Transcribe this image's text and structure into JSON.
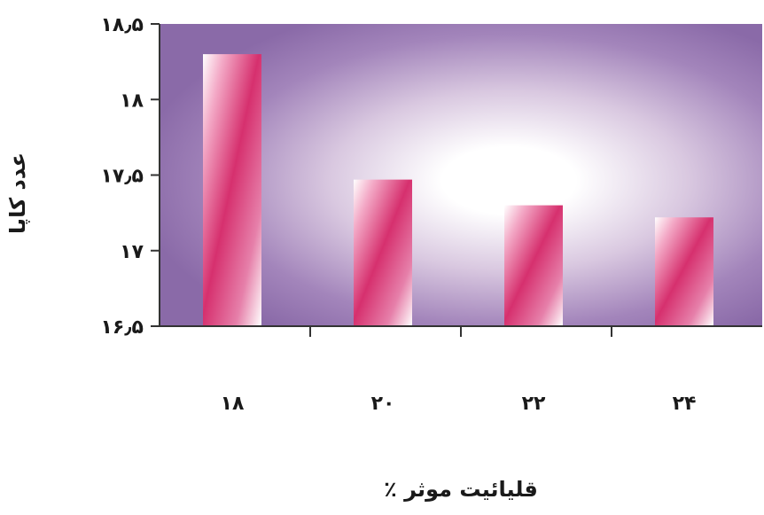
{
  "chart_data": {
    "type": "bar",
    "categories": [
      "۱۸",
      "۲۰",
      "۲۲",
      "۲۴"
    ],
    "values": [
      18.3,
      17.47,
      17.3,
      17.22
    ],
    "ylim": [
      16.5,
      18.5
    ],
    "yticks": [
      16.5,
      17,
      17.5,
      18,
      18.5
    ],
    "ytick_labels": [
      "۱۶٫۵",
      "۱۷",
      "۱۷٫۵",
      "۱۸",
      "۱۸٫۵"
    ],
    "xlabel": "قلیائیت موثر ٪",
    "ylabel": "عدد کاپا",
    "grid": false,
    "legend": "none",
    "colors": {
      "plot_bg_outer": "#8a6aa8",
      "plot_bg_inner": "#ffffff",
      "bar_main": "#d6306e",
      "bar_light": "#ffffff",
      "axis": "#333333"
    }
  }
}
